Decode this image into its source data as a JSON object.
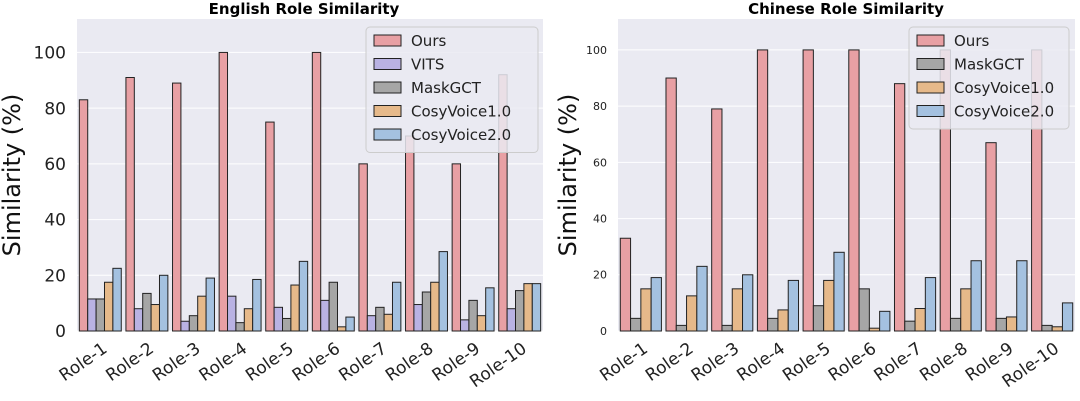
{
  "chart_data": [
    {
      "type": "bar",
      "title": "English Role Similarity",
      "xlabel": "",
      "ylabel": "Similarity (%)",
      "ylim": [
        0,
        112
      ],
      "yticks": [
        0,
        20,
        40,
        60,
        80,
        100
      ],
      "grid": true,
      "legend": "top-right",
      "categories": [
        "Role-1",
        "Role-2",
        "Role-3",
        "Role-4",
        "Role-5",
        "Role-6",
        "Role-7",
        "Role-8",
        "Role-9",
        "Role-10"
      ],
      "series": [
        {
          "name": "Ours",
          "color": "#e8a0a4",
          "values": [
            83,
            91,
            89,
            100,
            75,
            100,
            60,
            70,
            60,
            92
          ]
        },
        {
          "name": "VITS",
          "color": "#b9b2e3",
          "values": [
            11.5,
            8,
            3.5,
            12.5,
            8.5,
            11,
            5.5,
            9.5,
            4,
            8
          ]
        },
        {
          "name": "MaskGCT",
          "color": "#a6a6a6",
          "values": [
            11.5,
            13.5,
            5.5,
            3,
            4.5,
            17.5,
            8.5,
            14,
            11,
            14.5
          ]
        },
        {
          "name": "CosyVoice1.0",
          "color": "#e6b98a",
          "values": [
            17.5,
            9.5,
            12.5,
            8,
            16.5,
            1.5,
            6,
            17.5,
            5.5,
            17
          ]
        },
        {
          "name": "CosyVoice2.0",
          "color": "#a4c1e0",
          "values": [
            22.5,
            20,
            19,
            18.5,
            25,
            5,
            17.5,
            28.5,
            15.5,
            17
          ]
        }
      ]
    },
    {
      "type": "bar",
      "title": "Chinese Role Similarity",
      "xlabel": "",
      "ylabel": "Similarity (%)",
      "ylim": [
        0,
        111
      ],
      "yticks": [
        0,
        20,
        40,
        60,
        80,
        100
      ],
      "grid": true,
      "legend": "top-right",
      "categories": [
        "Role-1",
        "Role-2",
        "Role-3",
        "Role-4",
        "Role-5",
        "Role-6",
        "Role-7",
        "Role-8",
        "Role-9",
        "Role-10"
      ],
      "series": [
        {
          "name": "Ours",
          "color": "#e8a0a4",
          "values": [
            33,
            90,
            79,
            100,
            100,
            100,
            88,
            100,
            67,
            100
          ]
        },
        {
          "name": "MaskGCT",
          "color": "#a6a6a6",
          "values": [
            4.5,
            2,
            2,
            4.5,
            9,
            15,
            3.5,
            4.5,
            4.5,
            2
          ]
        },
        {
          "name": "CosyVoice1.0",
          "color": "#e6b98a",
          "values": [
            15,
            12.5,
            15,
            7.5,
            18,
            1,
            8,
            15,
            5,
            1.5
          ]
        },
        {
          "name": "CosyVoice2.0",
          "color": "#a4c1e0",
          "values": [
            19,
            23,
            20,
            18,
            28,
            7,
            19,
            25,
            25,
            10
          ]
        }
      ]
    }
  ]
}
